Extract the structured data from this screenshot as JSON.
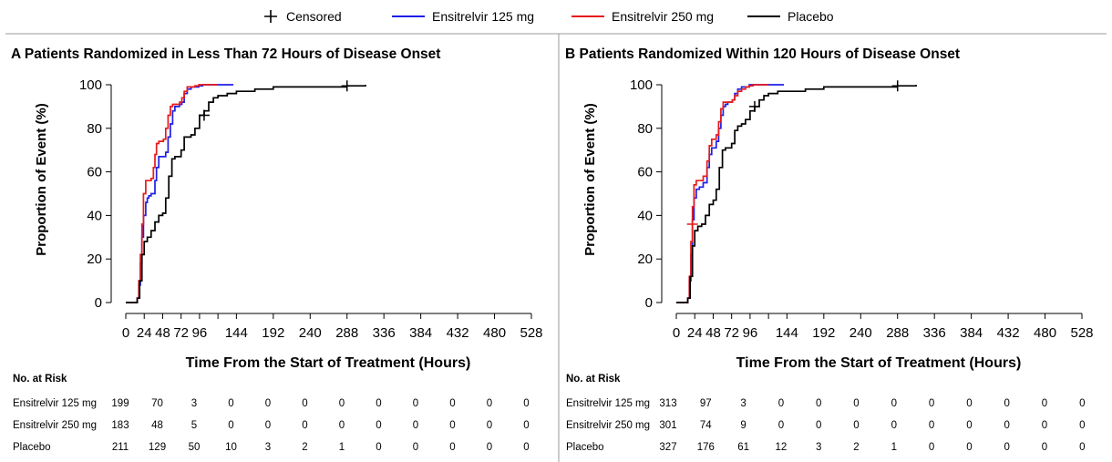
{
  "legend": {
    "items": [
      {
        "label": "Censored",
        "color": "#000000",
        "icon": "plus-marker-icon"
      },
      {
        "label": "Ensitrelvir 125 mg",
        "color": "#1f1fe6"
      },
      {
        "label": "Ensitrelvir 250 mg",
        "color": "#e61a1a"
      },
      {
        "label": "Placebo",
        "color": "#000000"
      }
    ]
  },
  "chart_data": [
    {
      "type": "line",
      "panel": "A",
      "title": "A Patients Randomized in Less Than 72 Hours of Disease Onset",
      "xlabel": "Time From the Start of Treatment (Hours)",
      "ylabel": "Proportion of Event (%)",
      "xlim": [
        0,
        528
      ],
      "ylim": [
        0,
        100
      ],
      "x_ticks": [
        0,
        24,
        48,
        72,
        96,
        120,
        144,
        192,
        240,
        288,
        336,
        384,
        432,
        480,
        528
      ],
      "x_tick_labels": [
        "0",
        "24",
        "48",
        "72",
        "96",
        "",
        "144",
        "192",
        "240",
        "288",
        "336",
        "384",
        "432",
        "480",
        "528"
      ],
      "y_ticks": [
        0,
        20,
        40,
        60,
        80,
        100
      ],
      "series": [
        {
          "name": "Ensitrelvir 125 mg",
          "color": "#1f1fe6",
          "x": [
            0,
            12,
            15,
            17,
            19,
            21,
            23,
            26,
            28,
            30,
            33,
            35,
            38,
            40,
            43,
            46,
            49,
            52,
            55,
            58,
            61,
            64,
            67,
            70,
            73,
            76,
            80,
            85,
            90,
            95,
            100,
            108,
            120,
            140
          ],
          "y": [
            0,
            0,
            2,
            8,
            18,
            30,
            40,
            46,
            48,
            49,
            50,
            50,
            56,
            62,
            67,
            67,
            67,
            69,
            76,
            82,
            88,
            90,
            90,
            91,
            92,
            96,
            98,
            99,
            99,
            99.5,
            100,
            100,
            100,
            100
          ]
        },
        {
          "name": "Ensitrelvir 250 mg",
          "color": "#e61a1a",
          "x": [
            0,
            12,
            15,
            17,
            19,
            21,
            23,
            26,
            30,
            33,
            36,
            38,
            40,
            43,
            46,
            49,
            52,
            55,
            58,
            61,
            64,
            67,
            70,
            73,
            76,
            80,
            85,
            90,
            95,
            100,
            108,
            120
          ],
          "y": [
            0,
            0,
            2,
            10,
            22,
            36,
            50,
            56,
            56,
            57,
            62,
            68,
            73,
            74,
            74,
            75,
            80,
            86,
            90,
            91,
            91,
            91,
            92,
            94,
            97,
            99,
            99,
            99.5,
            100,
            100,
            100,
            100
          ]
        },
        {
          "name": "Placebo",
          "color": "#000000",
          "x": [
            0,
            12,
            15,
            18,
            21,
            24,
            28,
            33,
            38,
            43,
            48,
            52,
            56,
            60,
            64,
            68,
            72,
            76,
            80,
            85,
            90,
            96,
            102,
            108,
            114,
            120,
            132,
            144,
            168,
            192,
            240,
            288,
            312
          ],
          "y": [
            0,
            0,
            2,
            10,
            22,
            28,
            30,
            33,
            37,
            40,
            41,
            48,
            58,
            66,
            67,
            67,
            70,
            76,
            76,
            77,
            80,
            86,
            88,
            92,
            94,
            95,
            96,
            97,
            98,
            99,
            99,
            99.5,
            100
          ]
        }
      ],
      "censored": [
        {
          "series": "Placebo",
          "x": 102,
          "y": 86
        },
        {
          "series": "Placebo",
          "x": 288,
          "y": 99.5
        }
      ]
    },
    {
      "type": "line",
      "panel": "B",
      "title": "B Patients Randomized Within 120 Hours of Disease Onset",
      "xlabel": "Time From the Start of Treatment (Hours)",
      "ylabel": "Proportion of Event (%)",
      "xlim": [
        0,
        528
      ],
      "ylim": [
        0,
        100
      ],
      "x_ticks": [
        0,
        24,
        48,
        72,
        96,
        120,
        144,
        192,
        240,
        288,
        336,
        384,
        432,
        480,
        528
      ],
      "x_tick_labels": [
        "0",
        "24",
        "48",
        "72",
        "96",
        "",
        "144",
        "192",
        "240",
        "288",
        "336",
        "384",
        "432",
        "480",
        "528"
      ],
      "y_ticks": [
        0,
        20,
        40,
        60,
        80,
        100
      ],
      "series": [
        {
          "name": "Ensitrelvir 125 mg",
          "color": "#1f1fe6",
          "x": [
            0,
            12,
            15,
            17,
            19,
            21,
            23,
            26,
            30,
            35,
            40,
            43,
            46,
            49,
            52,
            55,
            58,
            61,
            64,
            67,
            70,
            73,
            76,
            80,
            85,
            90,
            95,
            100,
            108,
            120,
            140
          ],
          "y": [
            0,
            0,
            2,
            10,
            22,
            38,
            48,
            52,
            53,
            55,
            62,
            68,
            71,
            71,
            74,
            80,
            86,
            90,
            91,
            92,
            92,
            93,
            96,
            98,
            99,
            99,
            100,
            100,
            100,
            100,
            100
          ]
        },
        {
          "name": "Ensitrelvir 250 mg",
          "color": "#e61a1a",
          "x": [
            0,
            12,
            15,
            17,
            19,
            21,
            23,
            26,
            30,
            35,
            40,
            43,
            46,
            49,
            52,
            55,
            58,
            61,
            64,
            67,
            70,
            73,
            76,
            80,
            85,
            90,
            95,
            100,
            108,
            120
          ],
          "y": [
            0,
            0,
            2,
            12,
            28,
            44,
            54,
            56,
            56,
            58,
            65,
            72,
            75,
            75,
            77,
            83,
            89,
            92,
            92,
            92,
            92,
            93,
            95,
            97,
            98,
            99,
            99.5,
            100,
            100,
            100
          ]
        },
        {
          "name": "Placebo",
          "color": "#000000",
          "x": [
            0,
            12,
            15,
            18,
            21,
            24,
            28,
            33,
            38,
            43,
            48,
            52,
            56,
            60,
            64,
            68,
            72,
            76,
            80,
            85,
            90,
            96,
            102,
            108,
            114,
            120,
            132,
            144,
            168,
            192,
            240,
            288,
            312
          ],
          "y": [
            0,
            0,
            2,
            12,
            26,
            33,
            35,
            36,
            40,
            45,
            47,
            52,
            62,
            70,
            71,
            71,
            73,
            79,
            81,
            82,
            84,
            88,
            90,
            93,
            95,
            96,
            97,
            97,
            98,
            99,
            99,
            99.5,
            100
          ]
        }
      ],
      "censored": [
        {
          "series": "Ensitrelvir 250 mg",
          "x": 21,
          "y": 36
        },
        {
          "series": "Placebo",
          "x": 102,
          "y": 90
        },
        {
          "series": "Placebo",
          "x": 288,
          "y": 99.5
        }
      ]
    }
  ],
  "risk_tables": [
    {
      "header": "No. at Risk",
      "rows": [
        {
          "label": "Ensitrelvir 125 mg",
          "values": [
            "199",
            "70",
            "3",
            "0",
            "0",
            "0",
            "0",
            "0",
            "0",
            "0",
            "0",
            "0"
          ]
        },
        {
          "label": "Ensitrelvir 250 mg",
          "values": [
            "183",
            "48",
            "5",
            "0",
            "0",
            "0",
            "0",
            "0",
            "0",
            "0",
            "0",
            "0"
          ]
        },
        {
          "label": "Placebo",
          "values": [
            "211",
            "129",
            "50",
            "10",
            "3",
            "2",
            "1",
            "0",
            "0",
            "0",
            "0",
            "0"
          ]
        }
      ]
    },
    {
      "header": "No. at Risk",
      "rows": [
        {
          "label": "Ensitrelvir 125 mg",
          "values": [
            "313",
            "97",
            "3",
            "0",
            "0",
            "0",
            "0",
            "0",
            "0",
            "0",
            "0",
            "0"
          ]
        },
        {
          "label": "Ensitrelvir 250 mg",
          "values": [
            "301",
            "74",
            "9",
            "0",
            "0",
            "0",
            "0",
            "0",
            "0",
            "0",
            "0",
            "0"
          ]
        },
        {
          "label": "Placebo",
          "values": [
            "327",
            "176",
            "61",
            "12",
            "3",
            "2",
            "1",
            "0",
            "0",
            "0",
            "0",
            "0"
          ]
        }
      ]
    }
  ]
}
